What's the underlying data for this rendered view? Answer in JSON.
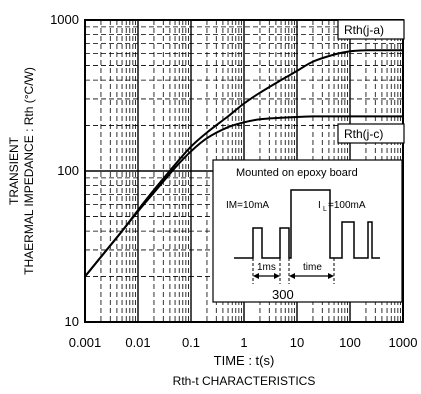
{
  "chart_data": {
    "type": "line",
    "title": "",
    "xlabel": "TIME : t(s)",
    "caption": "Rth-t CHARACTERISTICS",
    "ylabel_line1": "TRANSIENT",
    "ylabel_line2": "THAERMAL IMPEDANCE : Rth (°C/W)",
    "x_scale": "log",
    "y_scale": "log",
    "xlim": [
      0.001,
      1000
    ],
    "ylim": [
      10,
      1000
    ],
    "grid": true,
    "x_ticks": [
      {
        "value": 0.001,
        "label": "0.001"
      },
      {
        "value": 0.01,
        "label": "0.01"
      },
      {
        "value": 0.1,
        "label": "0.1"
      },
      {
        "value": 1,
        "label": "1"
      },
      {
        "value": 10,
        "label": "10"
      },
      {
        "value": 100,
        "label": "100"
      },
      {
        "value": 1000,
        "label": "1000"
      }
    ],
    "y_ticks": [
      {
        "value": 10,
        "label": "10"
      },
      {
        "value": 100,
        "label": "100"
      },
      {
        "value": 1000,
        "label": "1000"
      }
    ],
    "series": [
      {
        "name": "Rth(j-a)",
        "x": [
          0.001,
          0.002,
          0.005,
          0.01,
          0.02,
          0.05,
          0.1,
          0.2,
          0.5,
          1,
          2,
          5,
          10,
          20,
          50,
          100,
          200,
          500,
          1000
        ],
        "y": [
          20,
          27,
          40,
          55,
          75,
          110,
          145,
          180,
          230,
          280,
          330,
          400,
          460,
          530,
          590,
          620,
          630,
          630,
          630
        ]
      },
      {
        "name": "Rth(j-c)",
        "x": [
          0.001,
          0.002,
          0.005,
          0.01,
          0.02,
          0.05,
          0.1,
          0.2,
          0.5,
          1,
          2,
          5,
          10,
          20,
          50,
          100,
          200,
          500,
          1000
        ],
        "y": [
          20,
          27,
          40,
          54,
          72,
          105,
          135,
          165,
          195,
          210,
          220,
          225,
          228,
          230,
          230,
          230,
          230,
          230,
          230
        ]
      }
    ],
    "inset": {
      "title": "Mounted on epoxy board",
      "label_im": "IM=10mA",
      "label_i1": "I",
      "label_i1_sub": "L",
      "label_i1_rest": "=100mA",
      "label_1ms": "1ms",
      "label_time": "time",
      "label_300": "300"
    },
    "colors": {
      "line": "#000000",
      "grid": "#000000",
      "background": "#ffffff"
    }
  }
}
